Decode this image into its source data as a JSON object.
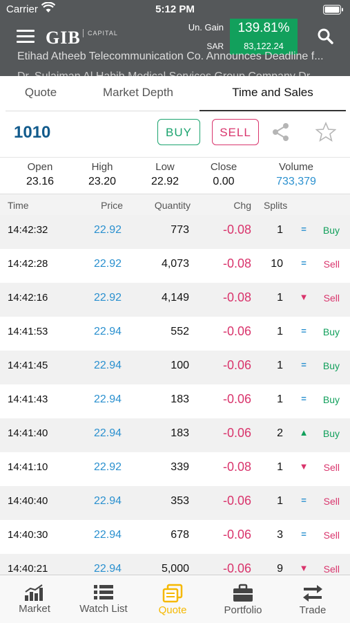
{
  "status_bar": {
    "carrier": "Carrier",
    "time": "5:12 PM"
  },
  "header": {
    "logo": "GIB",
    "logo_sub": "CAPITAL",
    "gain_label": "Un. Gain",
    "currency_label": "SAR",
    "gain_percent": "139.81%",
    "gain_value": "83,122.24",
    "ticker_line1": "Etihad Atheeb Telecommunication Co. Announces Deadline f...",
    "ticker_line2": "Dr. Sulaiman Al Habib Medical Services Group Company Dr..."
  },
  "tabs": [
    {
      "label": "Quote"
    },
    {
      "label": "Market Depth"
    },
    {
      "label": "Time and Sales"
    }
  ],
  "symbol": "1010",
  "buy_label": "BUY",
  "sell_label": "SELL",
  "stats": {
    "open_label": "Open",
    "open": "23.16",
    "high_label": "High",
    "high": "23.20",
    "low_label": "Low",
    "low": "22.92",
    "close_label": "Close",
    "close": "0.00",
    "volume_label": "Volume",
    "volume": "733,379"
  },
  "columns": {
    "time": "Time",
    "price": "Price",
    "quantity": "Quantity",
    "chg": "Chg",
    "splits": "Splits"
  },
  "trades": [
    {
      "time": "14:42:32",
      "price": "22.92",
      "qty": "773",
      "chg": "-0.08",
      "splits": "1",
      "ind": "eq",
      "side": "Buy"
    },
    {
      "time": "14:42:28",
      "price": "22.92",
      "qty": "4,073",
      "chg": "-0.08",
      "splits": "10",
      "ind": "eq",
      "side": "Sell"
    },
    {
      "time": "14:42:16",
      "price": "22.92",
      "qty": "4,149",
      "chg": "-0.08",
      "splits": "1",
      "ind": "down",
      "side": "Sell"
    },
    {
      "time": "14:41:53",
      "price": "22.94",
      "qty": "552",
      "chg": "-0.06",
      "splits": "1",
      "ind": "eq",
      "side": "Buy"
    },
    {
      "time": "14:41:45",
      "price": "22.94",
      "qty": "100",
      "chg": "-0.06",
      "splits": "1",
      "ind": "eq",
      "side": "Buy"
    },
    {
      "time": "14:41:43",
      "price": "22.94",
      "qty": "183",
      "chg": "-0.06",
      "splits": "1",
      "ind": "eq",
      "side": "Buy"
    },
    {
      "time": "14:41:40",
      "price": "22.94",
      "qty": "183",
      "chg": "-0.06",
      "splits": "2",
      "ind": "up",
      "side": "Buy"
    },
    {
      "time": "14:41:10",
      "price": "22.92",
      "qty": "339",
      "chg": "-0.08",
      "splits": "1",
      "ind": "down",
      "side": "Sell"
    },
    {
      "time": "14:40:40",
      "price": "22.94",
      "qty": "353",
      "chg": "-0.06",
      "splits": "1",
      "ind": "eq",
      "side": "Sell"
    },
    {
      "time": "14:40:30",
      "price": "22.94",
      "qty": "678",
      "chg": "-0.06",
      "splits": "3",
      "ind": "eq",
      "side": "Sell"
    },
    {
      "time": "14:40:21",
      "price": "22.94",
      "qty": "5,000",
      "chg": "-0.06",
      "splits": "9",
      "ind": "down",
      "side": "Sell"
    }
  ],
  "bottom_nav": [
    {
      "label": "Market",
      "icon": "bar-chart-icon"
    },
    {
      "label": "Watch List",
      "icon": "list-icon"
    },
    {
      "label": "Quote",
      "icon": "quote-icon"
    },
    {
      "label": "Portfolio",
      "icon": "briefcase-icon"
    },
    {
      "label": "Trade",
      "icon": "trade-arrows-icon"
    }
  ],
  "colors": {
    "header_bg": "#55585a",
    "gain_green": "#12a05c",
    "buy_green": "#1aa36e",
    "sell_red": "#d9346c",
    "price_blue": "#2a90cf",
    "symbol_blue": "#125b8c",
    "active_tab": "#f5b800"
  }
}
